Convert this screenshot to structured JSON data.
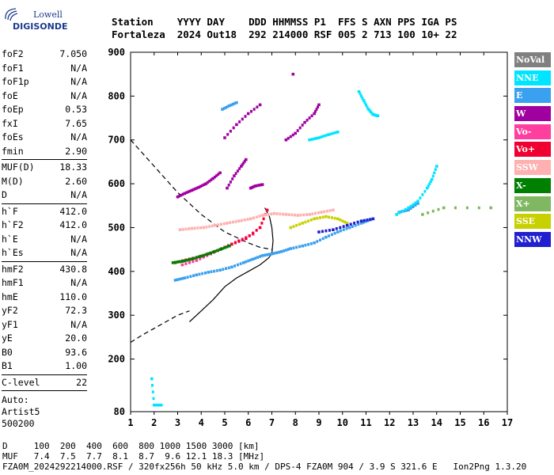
{
  "logo": {
    "line1": "Lowell",
    "line2": "DIGISONDE"
  },
  "header": {
    "line1": "Station    YYYY DAY    DDD HHMMSS P1  FFS S AXN PPS IGA PS",
    "line2": "Fortaleza  2024 Out18  292 214000 RSF 005 2 713 100 10+ 22"
  },
  "params_group1": [
    {
      "label": "foF2",
      "value": "7.050"
    },
    {
      "label": "foF1",
      "value": "N/A"
    },
    {
      "label": "foF1p",
      "value": "N/A"
    },
    {
      "label": "foE",
      "value": "N/A"
    },
    {
      "label": "foEp",
      "value": "0.53"
    },
    {
      "label": "fxI",
      "value": "7.65"
    },
    {
      "label": "foEs",
      "value": "N/A"
    },
    {
      "label": "fmin",
      "value": "2.90"
    }
  ],
  "params_group2": [
    {
      "label": "MUF(D)",
      "value": "18.33"
    },
    {
      "label": "M(D)",
      "value": "2.60"
    },
    {
      "label": "D",
      "value": "N/A"
    }
  ],
  "params_group3": [
    {
      "label": "h`F",
      "value": "412.0"
    },
    {
      "label": "h`F2",
      "value": "412.0"
    },
    {
      "label": "h`E",
      "value": "N/A"
    },
    {
      "label": "h`Es",
      "value": "N/A"
    }
  ],
  "params_group4": [
    {
      "label": "hmF2",
      "value": "430.8"
    },
    {
      "label": "hmF1",
      "value": "N/A"
    },
    {
      "label": "hmE",
      "value": "110.0"
    },
    {
      "label": "yF2",
      "value": "72.3"
    },
    {
      "label": "yF1",
      "value": "N/A"
    },
    {
      "label": "yE",
      "value": "20.0"
    },
    {
      "label": "B0",
      "value": "93.6"
    },
    {
      "label": "B1",
      "value": "1.00"
    }
  ],
  "params_group5": [
    {
      "label": "C-level",
      "value": "22"
    }
  ],
  "auto": [
    "Auto:",
    "Artist5",
    "500200"
  ],
  "legend": [
    {
      "name": "NoVal",
      "color": "#808080"
    },
    {
      "name": "NNE",
      "color": "#00e5ff"
    },
    {
      "name": "E",
      "color": "#3aa0f0"
    },
    {
      "name": "W",
      "color": "#a000a0"
    },
    {
      "name": "Vo-",
      "color": "#ff3ea0"
    },
    {
      "name": "Vo+",
      "color": "#f00030"
    },
    {
      "name": "SSW",
      "color": "#ffb0b0"
    },
    {
      "name": "X-",
      "color": "#008000"
    },
    {
      "name": "X+",
      "color": "#7fb860"
    },
    {
      "name": "SSE",
      "color": "#c8d000"
    },
    {
      "name": "NNW",
      "color": "#2020d0"
    }
  ],
  "footer": {
    "line1": "D     100  200  400  600  800 1000 1500 3000 [km]",
    "line2": "MUF   7.4  7.5  7.7  8.1  8.7  9.6 12.1 18.3 [MHz]",
    "line3": "FZA0M_2024292214000.RSF / 320fx256h 50 kHz 5.0 km / DPS-4 FZA0M 904 / 3.9 S 321.6 E   Ion2Png 1.3.20"
  },
  "chart_data": {
    "type": "scatter",
    "xlim": [
      1,
      17
    ],
    "ylim": [
      80,
      900
    ],
    "xticks": [
      1,
      2,
      3,
      4,
      5,
      6,
      7,
      8,
      9,
      10,
      11,
      12,
      13,
      14,
      15,
      16,
      17
    ],
    "yticks": [
      80,
      200,
      300,
      400,
      500,
      600,
      700,
      800,
      900
    ],
    "grid": false,
    "legend_position": "right",
    "series": [
      {
        "name": "E",
        "color": "#3aa0f0",
        "traces": [
          [
            [
              2.9,
              380
            ],
            [
              3.3,
              385
            ],
            [
              3.8,
              392
            ],
            [
              4.3,
              398
            ],
            [
              4.8,
              403
            ],
            [
              5.3,
              410
            ],
            [
              5.8,
              420
            ],
            [
              6.2,
              428
            ],
            [
              6.6,
              436
            ],
            [
              7.0,
              440
            ],
            [
              7.4,
              445
            ],
            [
              7.8,
              452
            ],
            [
              8.3,
              458
            ],
            [
              8.8,
              465
            ],
            [
              9.3,
              478
            ],
            [
              9.8,
              490
            ],
            [
              10.3,
              500
            ],
            [
              10.8,
              510
            ],
            [
              11.2,
              518
            ]
          ],
          [
            [
              4.9,
              770
            ],
            [
              5.2,
              778
            ],
            [
              5.5,
              785
            ]
          ],
          [
            [
              12.4,
              535
            ],
            [
              12.8,
              540
            ],
            [
              13.2,
              555
            ]
          ]
        ]
      },
      {
        "name": "NNE",
        "color": "#00e5ff",
        "traces": [
          [
            [
              8.6,
              700
            ],
            [
              9.0,
              705
            ],
            [
              9.4,
              712
            ],
            [
              9.8,
              718
            ]
          ],
          [
            [
              10.7,
              810
            ],
            [
              10.9,
              790
            ],
            [
              11.1,
              770
            ],
            [
              11.3,
              758
            ],
            [
              11.5,
              755
            ]
          ],
          [
            [
              12.3,
              530
            ],
            [
              12.8,
              545
            ],
            [
              13.2,
              560
            ],
            [
              13.6,
              590
            ],
            [
              13.8,
              610
            ],
            [
              14.0,
              640
            ]
          ],
          [
            [
              1.9,
              155
            ],
            [
              2.0,
              95
            ],
            [
              2.3,
              95
            ]
          ]
        ]
      },
      {
        "name": "W",
        "color": "#a000a0",
        "traces": [
          [
            [
              3.0,
              570
            ],
            [
              3.3,
              578
            ],
            [
              3.6,
              585
            ],
            [
              3.9,
              592
            ],
            [
              4.2,
              600
            ],
            [
              4.5,
              612
            ],
            [
              4.8,
              625
            ]
          ],
          [
            [
              5.1,
              590
            ],
            [
              5.4,
              618
            ],
            [
              5.7,
              640
            ],
            [
              5.9,
              655
            ]
          ],
          [
            [
              6.1,
              590
            ],
            [
              6.3,
              595
            ],
            [
              6.6,
              598
            ]
          ],
          [
            [
              7.6,
              700
            ],
            [
              8.0,
              715
            ],
            [
              8.4,
              740
            ],
            [
              8.8,
              760
            ],
            [
              9.0,
              780
            ]
          ],
          [
            [
              5.0,
              705
            ],
            [
              5.5,
              735
            ],
            [
              6.0,
              760
            ],
            [
              6.5,
              780
            ]
          ],
          [
            [
              7.9,
              850
            ]
          ]
        ]
      },
      {
        "name": "Vo-",
        "color": "#ff3ea0",
        "traces": [
          [
            [
              3.2,
              415
            ],
            [
              3.8,
              425
            ],
            [
              4.4,
              440
            ],
            [
              5.0,
              455
            ],
            [
              5.6,
              470
            ],
            [
              6.2,
              485
            ]
          ]
        ]
      },
      {
        "name": "Vo+",
        "color": "#f00030",
        "traces": [
          [
            [
              2.9,
              420
            ],
            [
              3.5,
              428
            ],
            [
              4.1,
              436
            ],
            [
              4.7,
              448
            ],
            [
              5.3,
              462
            ],
            [
              5.9,
              475
            ],
            [
              6.5,
              500
            ],
            [
              6.8,
              540
            ]
          ]
        ]
      },
      {
        "name": "SSW",
        "color": "#ffb0b0",
        "traces": [
          [
            [
              3.1,
              495
            ],
            [
              3.6,
              498
            ],
            [
              4.1,
              500
            ],
            [
              4.6,
              505
            ],
            [
              5.1,
              510
            ],
            [
              5.6,
              515
            ],
            [
              6.1,
              520
            ],
            [
              6.6,
              528
            ],
            [
              7.1,
              532
            ],
            [
              7.6,
              530
            ],
            [
              8.1,
              528
            ],
            [
              8.6,
              530
            ],
            [
              9.1,
              535
            ],
            [
              9.6,
              540
            ]
          ]
        ]
      },
      {
        "name": "X-",
        "color": "#008000",
        "traces": [
          [
            [
              2.8,
              420
            ],
            [
              3.2,
              423
            ],
            [
              3.6,
              428
            ],
            [
              4.0,
              435
            ],
            [
              4.4,
              442
            ],
            [
              4.8,
              450
            ],
            [
              5.2,
              458
            ]
          ]
        ]
      },
      {
        "name": "X+",
        "color": "#7fb860",
        "traces": [
          [
            [
              13.4,
              530
            ],
            [
              14.3,
              545
            ],
            [
              16.3,
              545
            ]
          ]
        ]
      },
      {
        "name": "SSE",
        "color": "#c8d000",
        "traces": [
          [
            [
              7.8,
              500
            ],
            [
              8.3,
              510
            ],
            [
              8.8,
              520
            ],
            [
              9.3,
              525
            ],
            [
              9.8,
              520
            ],
            [
              10.2,
              510
            ]
          ]
        ]
      },
      {
        "name": "NNW",
        "color": "#2020d0",
        "traces": [
          [
            [
              9.0,
              490
            ],
            [
              9.6,
              495
            ],
            [
              10.2,
              505
            ],
            [
              10.8,
              515
            ],
            [
              11.3,
              520
            ]
          ]
        ]
      }
    ],
    "profile": [
      [
        3.5,
        285
      ],
      [
        4.0,
        310
      ],
      [
        4.5,
        335
      ],
      [
        5.0,
        365
      ],
      [
        5.5,
        385
      ],
      [
        6.0,
        400
      ],
      [
        6.5,
        415
      ],
      [
        6.85,
        430
      ],
      [
        7.0,
        440
      ],
      [
        7.05,
        470
      ],
      [
        7.0,
        500
      ],
      [
        6.9,
        525
      ],
      [
        6.7,
        545
      ]
    ],
    "profile_extrapolated_low": [
      [
        1.0,
        238
      ],
      [
        1.5,
        255
      ],
      [
        2.0,
        270
      ],
      [
        2.5,
        285
      ],
      [
        3.0,
        300
      ],
      [
        3.5,
        310
      ]
    ],
    "profile_extrapolated_high": [
      [
        1.0,
        700
      ],
      [
        2.0,
        640
      ],
      [
        3.0,
        580
      ],
      [
        4.0,
        530
      ],
      [
        5.0,
        490
      ],
      [
        6.0,
        465
      ],
      [
        6.5,
        455
      ],
      [
        7.0,
        450
      ]
    ]
  }
}
